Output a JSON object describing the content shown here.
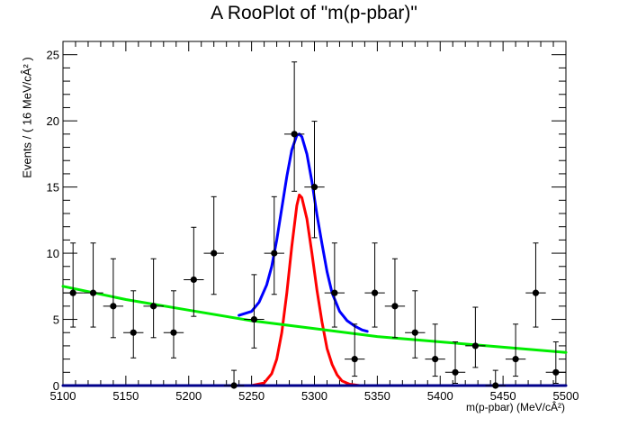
{
  "chart_data": {
    "type": "scatter",
    "title": "A RooPlot of \"m(p-pbar)\"",
    "xlabel": "m(p-pbar) (MeV/cÂ²)",
    "ylabel": "Events / ( 16 MeV/cÂ² )",
    "xlim": [
      5100,
      5500
    ],
    "ylim": [
      0,
      26
    ],
    "xticks": [
      5100,
      5150,
      5200,
      5250,
      5300,
      5350,
      5400,
      5450,
      5500
    ],
    "yticks": [
      0,
      5,
      10,
      15,
      20,
      25
    ],
    "bin_width": 16,
    "grid": false,
    "series": [
      {
        "kind": "points",
        "color": "#000000",
        "x": [
          5108,
          5124,
          5140,
          5156,
          5172,
          5188,
          5204,
          5220,
          5236,
          5252,
          5268,
          5284,
          5300,
          5316,
          5332,
          5348,
          5364,
          5380,
          5396,
          5412,
          5428,
          5444,
          5460,
          5476,
          5492
        ],
        "y": [
          7,
          7,
          6,
          4,
          6,
          4,
          8,
          10,
          0,
          5,
          10,
          19,
          15,
          7,
          2,
          7,
          6,
          4,
          2,
          1,
          3,
          0,
          2,
          7,
          1
        ],
        "yerr_low": [
          2.58,
          2.58,
          2.38,
          1.91,
          2.38,
          1.91,
          2.77,
          3.11,
          0,
          2.16,
          3.11,
          4.32,
          3.83,
          2.58,
          1.29,
          2.58,
          2.38,
          1.91,
          1.29,
          0.83,
          1.63,
          0,
          1.29,
          2.58,
          0.83
        ],
        "yerr_high": [
          3.77,
          3.77,
          3.58,
          3.16,
          3.58,
          3.16,
          3.96,
          4.27,
          1.15,
          3.38,
          4.27,
          5.45,
          4.97,
          3.77,
          2.64,
          3.77,
          3.58,
          3.16,
          2.64,
          2.3,
          2.92,
          1.15,
          2.64,
          3.77,
          2.3
        ]
      },
      {
        "kind": "curve",
        "color": "#0000ff",
        "x": [
          5100,
          5150,
          5200,
          5240,
          5250,
          5260,
          5270,
          5276,
          5280,
          5284,
          5287,
          5290,
          5294,
          5298,
          5304,
          5310,
          5320,
          5330,
          5340
        ],
        "y": [
          0,
          0,
          0,
          0,
          0,
          0,
          0,
          0,
          0,
          0,
          0,
          0,
          0,
          0,
          0,
          0,
          0,
          0,
          0
        ],
        "x_curve": [
          5240,
          5250,
          5256,
          5262,
          5266,
          5270,
          5274,
          5278,
          5282,
          5286,
          5288,
          5290,
          5294,
          5298,
          5302,
          5306,
          5310,
          5314,
          5320,
          5326,
          5332,
          5338,
          5342
        ],
        "y_curve": [
          5.3,
          5.6,
          6.3,
          7.6,
          9.0,
          11.0,
          13.4,
          15.8,
          17.8,
          18.9,
          19.0,
          18.8,
          17.5,
          15.4,
          12.9,
          10.7,
          8.6,
          7.0,
          5.6,
          4.9,
          4.5,
          4.2,
          4.1
        ]
      },
      {
        "kind": "curve",
        "color": "#ff0000",
        "x_curve": [
          5250,
          5260,
          5266,
          5270,
          5274,
          5278,
          5282,
          5286,
          5288,
          5290,
          5294,
          5298,
          5302,
          5306,
          5310,
          5314,
          5318,
          5322,
          5328,
          5336
        ],
        "y_curve": [
          0.0,
          0.2,
          0.9,
          2.0,
          4.0,
          7.0,
          10.5,
          13.6,
          14.4,
          14.2,
          12.6,
          10.0,
          7.2,
          4.8,
          2.8,
          1.6,
          0.8,
          0.35,
          0.1,
          0.0
        ]
      },
      {
        "kind": "curve",
        "color": "#00ee00",
        "x_curve": [
          5100,
          5150,
          5200,
          5250,
          5300,
          5350,
          5400,
          5450,
          5500
        ],
        "y_curve": [
          7.5,
          6.5,
          5.7,
          4.9,
          4.3,
          3.7,
          3.3,
          2.9,
          2.5
        ]
      },
      {
        "kind": "curve",
        "color": "#00008b",
        "x_curve": [
          5100,
          5500
        ],
        "y_curve": [
          0,
          0
        ]
      }
    ]
  }
}
